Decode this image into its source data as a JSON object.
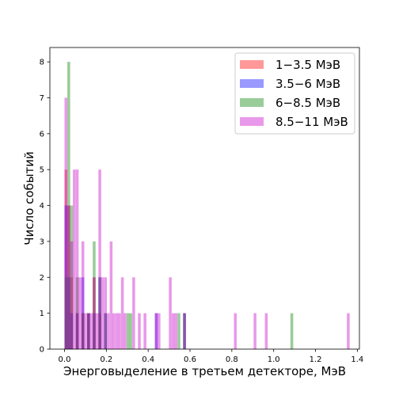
{
  "chart_data": {
    "type": "histogram",
    "xlabel": "Энерговыделение в третьем детекторе, МэВ",
    "ylabel": "Число событий",
    "xlim": [
      -0.07,
      1.41
    ],
    "ylim": [
      0,
      8.4
    ],
    "xticks": [
      "0.0",
      "0.2",
      "0.4",
      "0.6",
      "0.8",
      "1.0",
      "1.2",
      "1.4"
    ],
    "xtick_values": [
      0.0,
      0.2,
      0.4,
      0.6,
      0.8,
      1.0,
      1.2,
      1.4
    ],
    "yticks": [
      "0",
      "1",
      "2",
      "3",
      "4",
      "5",
      "6",
      "7",
      "8"
    ],
    "ytick_values": [
      0,
      1,
      2,
      3,
      4,
      5,
      6,
      7,
      8
    ],
    "grid": false,
    "legend_position": "top-right",
    "bin_width": 0.0135,
    "series": [
      {
        "name": "1−3.5 МэВ",
        "color": "#ff0000",
        "opacity": 0.4,
        "bins": [
          [
            0.0,
            5
          ],
          [
            0.0135,
            4
          ],
          [
            0.027,
            2
          ],
          [
            0.054,
            1
          ],
          [
            0.081,
            1
          ],
          [
            0.108,
            1
          ],
          [
            0.135,
            2
          ],
          [
            0.162,
            1
          ]
        ]
      },
      {
        "name": "3.5−6 МэВ",
        "color": "#0000ff",
        "opacity": 0.4,
        "bins": [
          [
            0.0,
            4
          ],
          [
            0.0135,
            2
          ],
          [
            0.027,
            1
          ],
          [
            0.054,
            1
          ],
          [
            0.081,
            2
          ],
          [
            0.108,
            1
          ],
          [
            0.135,
            1
          ],
          [
            0.162,
            2
          ],
          [
            0.189,
            1
          ],
          [
            0.432,
            1
          ],
          [
            0.567,
            1
          ]
        ]
      },
      {
        "name": "6−8.5 МэВ",
        "color": "#008000",
        "opacity": 0.4,
        "bins": [
          [
            0.0,
            2
          ],
          [
            0.0135,
            8
          ],
          [
            0.027,
            4
          ],
          [
            0.054,
            2
          ],
          [
            0.081,
            1
          ],
          [
            0.108,
            1
          ],
          [
            0.135,
            3
          ],
          [
            0.162,
            2
          ],
          [
            0.189,
            1
          ],
          [
            0.297,
            1
          ],
          [
            0.31,
            1
          ],
          [
            0.54,
            1
          ],
          [
            0.567,
            1
          ],
          [
            1.08,
            1
          ]
        ]
      },
      {
        "name": "8.5−11 МэВ",
        "color": "#c800c8",
        "opacity": 0.4,
        "bins": [
          [
            0.0,
            7
          ],
          [
            0.0135,
            4
          ],
          [
            0.027,
            3
          ],
          [
            0.04,
            5
          ],
          [
            0.054,
            5
          ],
          [
            0.067,
            2
          ],
          [
            0.081,
            3
          ],
          [
            0.094,
            1
          ],
          [
            0.108,
            1
          ],
          [
            0.121,
            1
          ],
          [
            0.135,
            2
          ],
          [
            0.148,
            1
          ],
          [
            0.162,
            5
          ],
          [
            0.175,
            2
          ],
          [
            0.189,
            2
          ],
          [
            0.202,
            1
          ],
          [
            0.216,
            3
          ],
          [
            0.229,
            1
          ],
          [
            0.243,
            1
          ],
          [
            0.256,
            1
          ],
          [
            0.27,
            2
          ],
          [
            0.283,
            1
          ],
          [
            0.324,
            2
          ],
          [
            0.351,
            1
          ],
          [
            0.378,
            1
          ],
          [
            0.432,
            1
          ],
          [
            0.445,
            1
          ],
          [
            0.499,
            2
          ],
          [
            0.513,
            1
          ],
          [
            0.526,
            1
          ],
          [
            0.567,
            1
          ],
          [
            0.81,
            1
          ],
          [
            0.904,
            1
          ],
          [
            0.958,
            1
          ],
          [
            1.35,
            1
          ]
        ]
      }
    ]
  }
}
